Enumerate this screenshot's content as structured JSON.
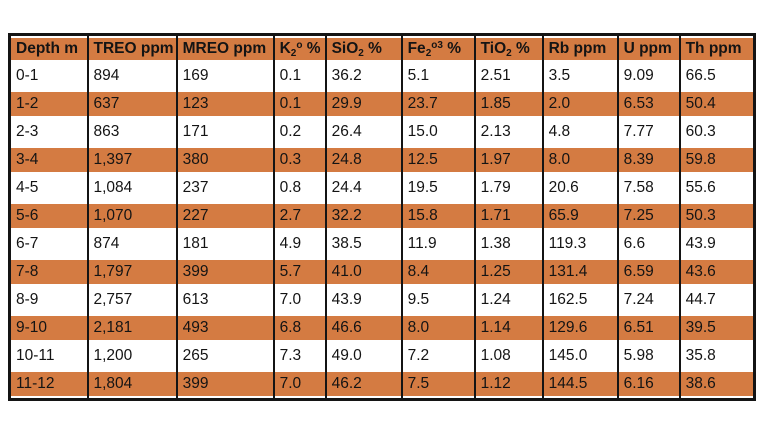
{
  "chart_data": {
    "type": "table",
    "title": "",
    "columns": [
      "Depth m",
      "TREO ppm",
      "MREO ppm",
      "K2O %",
      "SiO2 %",
      "Fe2O3 %",
      "TiO2 %",
      "Rb ppm",
      "U ppm",
      "Th ppm"
    ],
    "rows": [
      [
        "0-1",
        "894",
        "169",
        "0.1",
        "36.2",
        "5.1",
        "2.51",
        "3.5",
        "9.09",
        "66.5"
      ],
      [
        "1-2",
        "637",
        "123",
        "0.1",
        "29.9",
        "23.7",
        "1.85",
        "2.0",
        "6.53",
        "50.4"
      ],
      [
        "2-3",
        "863",
        "171",
        "0.2",
        "26.4",
        "15.0",
        "2.13",
        "4.8",
        "7.77",
        "60.3"
      ],
      [
        "3-4",
        "1,397",
        "380",
        "0.3",
        "24.8",
        "12.5",
        "1.97",
        "8.0",
        "8.39",
        "59.8"
      ],
      [
        "4-5",
        "1,084",
        "237",
        "0.8",
        "24.4",
        "19.5",
        "1.79",
        "20.6",
        "7.58",
        "55.6"
      ],
      [
        "5-6",
        "1,070",
        "227",
        "2.7",
        "32.2",
        "15.8",
        "1.71",
        "65.9",
        "7.25",
        "50.3"
      ],
      [
        "6-7",
        "874",
        "181",
        "4.9",
        "38.5",
        "11.9",
        "1.38",
        "119.3",
        "6.6",
        "43.9"
      ],
      [
        "7-8",
        "1,797",
        "399",
        "5.7",
        "41.0",
        "8.4",
        "1.25",
        "131.4",
        "6.59",
        "43.6"
      ],
      [
        "8-9",
        "2,757",
        "613",
        "7.0",
        "43.9",
        "9.5",
        "1.24",
        "162.5",
        "7.24",
        "44.7"
      ],
      [
        "9-10",
        "2,181",
        "493",
        "6.8",
        "46.6",
        "8.0",
        "1.14",
        "129.6",
        "6.51",
        "39.5"
      ],
      [
        "10-11",
        "1,200",
        "265",
        "7.3",
        "49.0",
        "7.2",
        "1.08",
        "145.0",
        "5.98",
        "35.8"
      ],
      [
        "11-12",
        "1,804",
        "399",
        "7.0",
        "46.2",
        "7.5",
        "1.12",
        "144.5",
        "6.16",
        "38.6"
      ]
    ],
    "highlighted_rows": [
      "1-2",
      "3-4",
      "5-6",
      "7-8",
      "9-10",
      "11-12"
    ],
    "legend_position": "none",
    "grid": "vertical-rules-only"
  },
  "header_display": [
    [
      {
        "t": "Depth m"
      }
    ],
    [
      {
        "t": "TREO ppm"
      }
    ],
    [
      {
        "t": "MREO ppm"
      }
    ],
    [
      {
        "t": "K"
      },
      {
        "t": "2",
        "s": "sub"
      },
      {
        "t": "o",
        "s": "sup"
      },
      {
        "t": " %"
      }
    ],
    [
      {
        "t": "SiO"
      },
      {
        "t": "2",
        "s": "sub"
      },
      {
        "t": " %"
      }
    ],
    [
      {
        "t": "Fe"
      },
      {
        "t": "2",
        "s": "sub"
      },
      {
        "t": "o3",
        "s": "sup"
      },
      {
        "t": " %"
      }
    ],
    [
      {
        "t": "TiO"
      },
      {
        "t": "2",
        "s": "sub"
      },
      {
        "t": " %"
      }
    ],
    [
      {
        "t": "Rb ppm"
      }
    ],
    [
      {
        "t": "U ppm"
      }
    ],
    [
      {
        "t": "Th ppm"
      }
    ]
  ],
  "colors": {
    "highlight_orange": "#d47b42",
    "border_black": "#141414",
    "text": "#141414",
    "background": "#ffffff"
  }
}
